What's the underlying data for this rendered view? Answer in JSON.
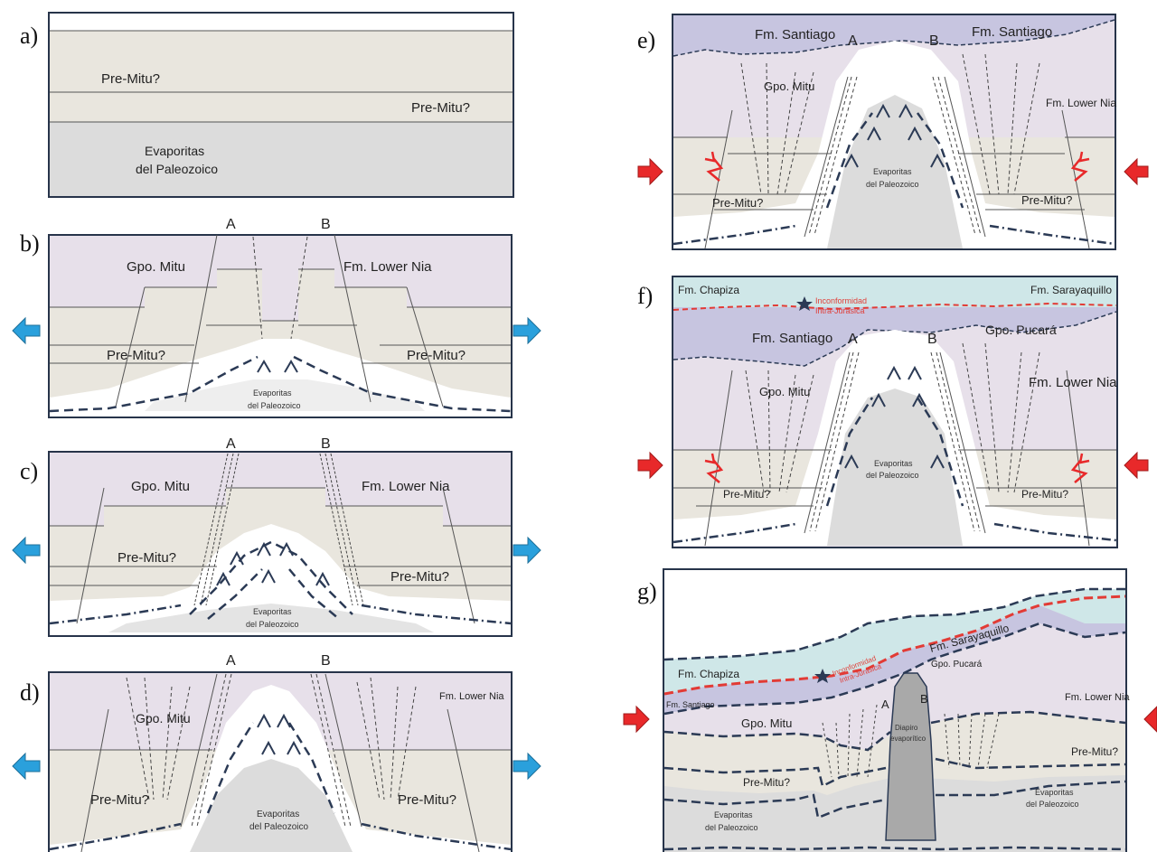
{
  "colors": {
    "mitu": "#e7e0ea",
    "premitu": "#e9e6de",
    "evaporite": "#dcdcdc",
    "salt_white": "#ffffff",
    "santiago": "#c7c5e0",
    "chapiza": "#cfe7e8",
    "frame": "#27344a",
    "arrow_blue": "#2aa0dc",
    "arrow_red": "#e8292a",
    "unconformity": "#e23b35",
    "dash": "#2b3a55"
  },
  "panels": {
    "a": {
      "label": "a)",
      "premitu_top": "Pre-Mitu?",
      "premitu_bottom": "Pre-Mitu?",
      "evap_1": "Evaporitas",
      "evap_2": "del Paleozoico"
    },
    "b": {
      "label": "b)",
      "fault_a": "A",
      "fault_b": "B",
      "mitu": "Gpo. Mitu",
      "lower_nia": "Fm. Lower Nia",
      "premitu_left": "Pre-Mitu?",
      "premitu_right": "Pre-Mitu?",
      "evap_1": "Evaporitas",
      "evap_2": "del Paleozoico"
    },
    "c": {
      "label": "c)",
      "fault_a": "A",
      "fault_b": "B",
      "mitu": "Gpo. Mitu",
      "lower_nia": "Fm. Lower Nia",
      "premitu_left": "Pre-Mitu?",
      "premitu_right": "Pre-Mitu?",
      "evap_1": "Evaporitas",
      "evap_2": "del Paleozoico"
    },
    "d": {
      "label": "d)",
      "fault_a": "A",
      "fault_b": "B",
      "mitu": "Gpo. Mitu",
      "lower_nia": "Fm. Lower Nia",
      "premitu_left": "Pre-Mitu?",
      "premitu_right": "Pre-Mitu?",
      "evap_1": "Evaporitas",
      "evap_2": "del Paleozoico"
    },
    "e": {
      "label": "e)",
      "santiago_left": "Fm. Santiago",
      "santiago_right": "Fm. Santiago",
      "fault_a": "A",
      "fault_b": "B",
      "mitu": "Gpo. Mitu",
      "lower_nia": "Fm. Lower Nia",
      "premitu_left": "Pre-Mitu?",
      "premitu_right": "Pre-Mitu?",
      "evap_1": "Evaporitas",
      "evap_2": "del Paleozoico"
    },
    "f": {
      "label": "f)",
      "chapiza": "Fm. Chapiza",
      "sarayaquillo": "Fm. Sarayaquillo",
      "unconf_1": "Inconformidad",
      "unconf_2": "Intra-Jurásica",
      "santiago": "Fm. Santiago",
      "pucara": "Gpo. Pucará",
      "fault_a": "A",
      "fault_b": "B",
      "mitu": "Gpo. Mitu",
      "lower_nia": "Fm. Lower Nia",
      "premitu_left": "Pre-Mitu?",
      "premitu_right": "Pre-Mitu?",
      "evap_1": "Evaporitas",
      "evap_2": "del Paleozoico"
    },
    "g": {
      "label": "g)",
      "chapiza": "Fm. Chapiza",
      "sarayaquillo": "Fm. Sarayaquillo",
      "unconf_1": "Inconformidad",
      "unconf_2": "Intra-Jurásica",
      "pucara": "Gpo. Pucará",
      "santiago": "Fm. Santiago",
      "fault_a": "A",
      "fault_b": "B",
      "mitu": "Gpo. Mitu",
      "lower_nia": "Fm. Lower Nia",
      "diapiro_1": "Diapiro",
      "diapiro_2": "evaporítico",
      "premitu_left": "Pre-Mitu?",
      "premitu_right": "Pre-Mitu?",
      "evap_left_1": "Evaporitas",
      "evap_left_2": "del Paleozoico",
      "evap_right_1": "Evaporitas",
      "evap_right_2": "del Paleozoico"
    }
  }
}
